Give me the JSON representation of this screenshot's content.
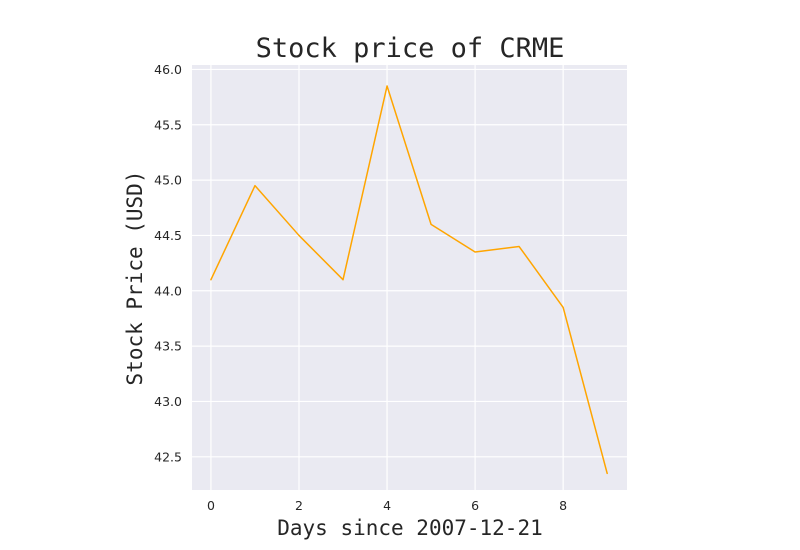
{
  "chart_data": {
    "type": "line",
    "title": "Stock price of CRME",
    "xlabel": "Days since 2007-12-21",
    "ylabel": "Stock Price (USD)",
    "x": [
      0,
      1,
      2,
      3,
      4,
      5,
      6,
      7,
      8,
      9
    ],
    "series": [
      {
        "values": [
          44.1,
          44.95,
          44.5,
          44.1,
          45.85,
          44.6,
          44.35,
          44.4,
          43.85,
          42.35
        ],
        "color": "#ffa500"
      }
    ],
    "xlim": [
      -0.43,
      9.45
    ],
    "ylim": [
      42.2,
      46.04
    ],
    "xticks": [
      0,
      2,
      4,
      6,
      8
    ],
    "xtick_labels": [
      "0",
      "2",
      "4",
      "6",
      "8"
    ],
    "yticks": [
      42.5,
      43.0,
      43.5,
      44.0,
      44.5,
      45.0,
      45.5,
      46.0
    ],
    "ytick_labels": [
      "42.5",
      "43.0",
      "43.5",
      "44.0",
      "44.5",
      "45.0",
      "45.5",
      "46.0"
    ],
    "grid": true,
    "background_color": "#eaeaf2"
  }
}
